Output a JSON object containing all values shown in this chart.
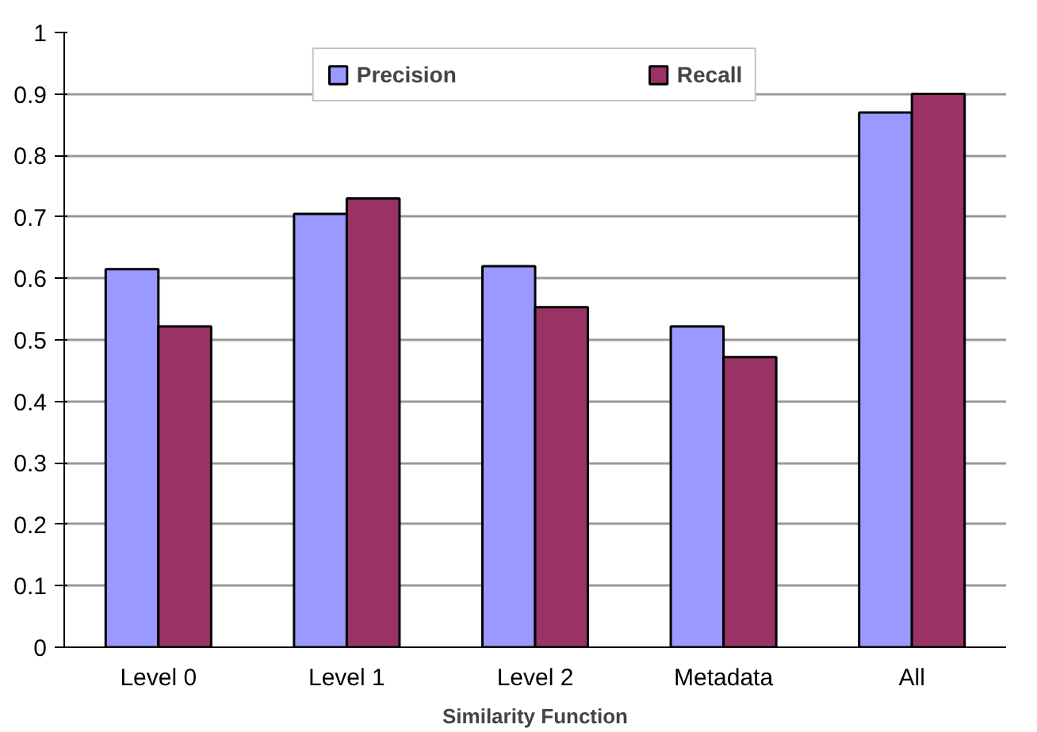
{
  "chart_data": {
    "type": "bar",
    "xlabel": "Similarity Function",
    "categories": [
      "Level 0",
      "Level 1",
      "Level 2",
      "Metadata",
      "All"
    ],
    "series": [
      {
        "name": "Precision",
        "color": "#9999ff",
        "values": [
          0.615,
          0.705,
          0.62,
          0.522,
          0.87
        ]
      },
      {
        "name": "Recall",
        "color": "#993366",
        "values": [
          0.522,
          0.73,
          0.553,
          0.472,
          0.9
        ]
      }
    ],
    "ylim": [
      0,
      1
    ],
    "yticks": [
      0,
      0.1,
      0.2,
      0.3,
      0.4,
      0.5,
      0.6,
      0.7,
      0.8,
      0.9,
      1
    ],
    "grid": "y",
    "legend": "top"
  }
}
